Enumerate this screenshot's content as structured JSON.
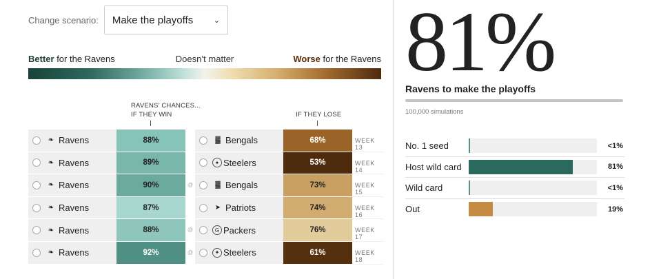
{
  "scenario": {
    "label": "Change scenario:",
    "selected": "Make the playoffs",
    "chevron": "chevron-down-icon"
  },
  "legend": {
    "better_bold": "Better",
    "better_rest": " for the Ravens",
    "middle": "Doesn’t matter",
    "worse_bold": "Worse",
    "worse_rest": " for the Ravens",
    "gradient_colors": [
      "#17433a",
      "#2e6a5e",
      "#6eaaa0",
      "#bfe1da",
      "#f2f2ec",
      "#efdcae",
      "#d6b16f",
      "#a56c2e",
      "#4e2a0e"
    ]
  },
  "columns": {
    "win_line1": "RAVENS’ CHANCES...",
    "win_line2": "IF THEY WIN",
    "lose": "IF THEY LOSE"
  },
  "games": [
    {
      "team": "Ravens",
      "team_logo": "ravens-logo-icon",
      "win_pct": "88%",
      "win_color": "#86c3b8",
      "win_text": "#222",
      "away": false,
      "opponent": "Bengals",
      "opp_logo": "bengals-logo-icon",
      "lose_pct": "68%",
      "lose_color": "#9a6428",
      "lose_text": "#fff",
      "week": "WEEK 13"
    },
    {
      "team": "Ravens",
      "team_logo": "ravens-logo-icon",
      "win_pct": "89%",
      "win_color": "#79b7ab",
      "win_text": "#222",
      "away": false,
      "opponent": "Steelers",
      "opp_logo": "steelers-logo-icon",
      "lose_pct": "53%",
      "lose_color": "#4f2b0d",
      "lose_text": "#fff",
      "week": "WEEK 14"
    },
    {
      "team": "Ravens",
      "team_logo": "ravens-logo-icon",
      "win_pct": "90%",
      "win_color": "#6caa9e",
      "win_text": "#222",
      "away": true,
      "opponent": "Bengals",
      "opp_logo": "bengals-logo-icon",
      "lose_pct": "73%",
      "lose_color": "#c9a062",
      "lose_text": "#222",
      "week": "WEEK 15"
    },
    {
      "team": "Ravens",
      "team_logo": "ravens-logo-icon",
      "win_pct": "87%",
      "win_color": "#a6d6cd",
      "win_text": "#222",
      "away": false,
      "opponent": "Patriots",
      "opp_logo": "patriots-logo-icon",
      "lose_pct": "74%",
      "lose_color": "#d0ac70",
      "lose_text": "#222",
      "week": "WEEK 16"
    },
    {
      "team": "Ravens",
      "team_logo": "ravens-logo-icon",
      "win_pct": "88%",
      "win_color": "#8ec6bb",
      "win_text": "#222",
      "away": true,
      "opponent": "Packers",
      "opp_logo": "packers-logo-icon",
      "lose_pct": "76%",
      "lose_color": "#e3cc9b",
      "lose_text": "#222",
      "week": "WEEK 17"
    },
    {
      "team": "Ravens",
      "team_logo": "ravens-logo-icon",
      "win_pct": "92%",
      "win_color": "#4f8f84",
      "win_text": "#fff",
      "away": true,
      "opponent": "Steelers",
      "opp_logo": "steelers-logo-icon",
      "lose_pct": "61%",
      "lose_color": "#55300f",
      "lose_text": "#fff",
      "week": "WEEK 18"
    }
  ],
  "away_marker": "@",
  "summary": {
    "big_pct": "81%",
    "subtitle": "Ravens to make the playoffs",
    "simulations": "100,000 simulations"
  },
  "outcomes": [
    {
      "label": "No. 1 seed",
      "value": "<1%",
      "pct": 0.5,
      "color": "#5a8f86"
    },
    {
      "label": "Host wild card",
      "value": "81%",
      "pct": 81,
      "color": "#2a6a5e"
    },
    {
      "label": "Wild card",
      "value": "<1%",
      "pct": 0.5,
      "color": "#5a8f86"
    },
    {
      "label": "Out",
      "value": "19%",
      "pct": 19,
      "color": "#c48a42"
    }
  ]
}
